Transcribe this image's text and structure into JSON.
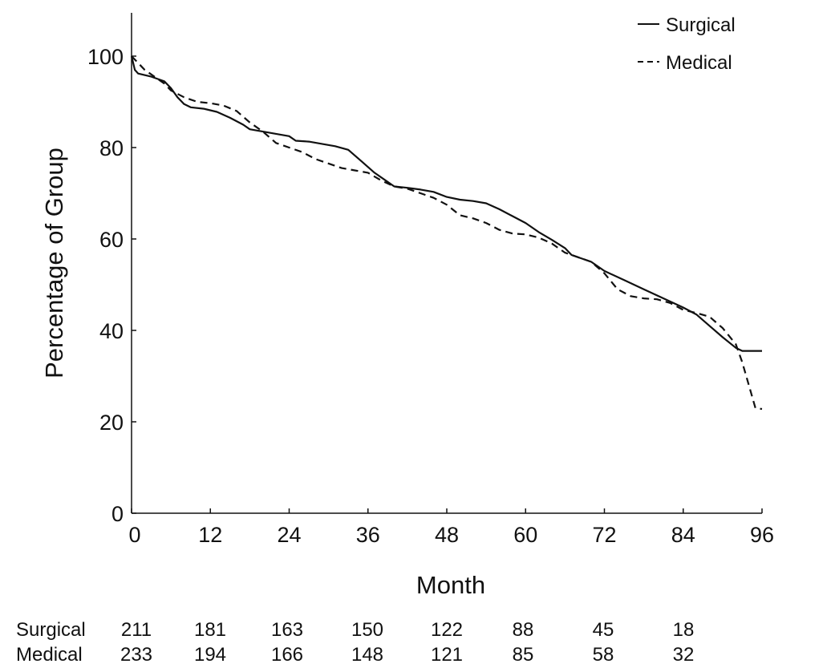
{
  "chart_data": {
    "type": "line",
    "title": "",
    "xlabel": "Month",
    "ylabel": "Percentage of Group",
    "xlim": [
      0,
      96
    ],
    "ylim": [
      0,
      108
    ],
    "x_ticks": [
      0,
      12,
      24,
      36,
      48,
      60,
      72,
      84,
      96
    ],
    "y_ticks": [
      0,
      20,
      40,
      60,
      80,
      100
    ],
    "legend_position": "top-right",
    "series": [
      {
        "name": "Surgical",
        "style": "solid",
        "points": [
          [
            0,
            100
          ],
          [
            0.5,
            97
          ],
          [
            1,
            96.2
          ],
          [
            3,
            95.5
          ],
          [
            5,
            94.5
          ],
          [
            6,
            93
          ],
          [
            7,
            91
          ],
          [
            8,
            89.5
          ],
          [
            9,
            88.8
          ],
          [
            11,
            88.5
          ],
          [
            13,
            87.8
          ],
          [
            15,
            86.5
          ],
          [
            17,
            85
          ],
          [
            18,
            84
          ],
          [
            20,
            83.5
          ],
          [
            22,
            83
          ],
          [
            24,
            82.5
          ],
          [
            25,
            81.5
          ],
          [
            27,
            81.3
          ],
          [
            29,
            80.8
          ],
          [
            31,
            80.3
          ],
          [
            33,
            79.5
          ],
          [
            35,
            77
          ],
          [
            37,
            74.5
          ],
          [
            39,
            72.5
          ],
          [
            40,
            71.5
          ],
          [
            42,
            71.2
          ],
          [
            44,
            70.8
          ],
          [
            46,
            70.3
          ],
          [
            48,
            69.2
          ],
          [
            50,
            68.6
          ],
          [
            52,
            68.3
          ],
          [
            54,
            67.8
          ],
          [
            56,
            66.5
          ],
          [
            58,
            65
          ],
          [
            60,
            63.5
          ],
          [
            62,
            61.5
          ],
          [
            64,
            59.8
          ],
          [
            66,
            58
          ],
          [
            67,
            56.5
          ],
          [
            70,
            55
          ],
          [
            72,
            53
          ],
          [
            75,
            51
          ],
          [
            78,
            49
          ],
          [
            81,
            47
          ],
          [
            84,
            45
          ],
          [
            86,
            43.5
          ],
          [
            88,
            41
          ],
          [
            90,
            38.5
          ],
          [
            92,
            36.2
          ],
          [
            93,
            35.5
          ],
          [
            96,
            35.5
          ]
        ]
      },
      {
        "name": "Medical",
        "style": "dashed",
        "points": [
          [
            0,
            100
          ],
          [
            1,
            98.5
          ],
          [
            2,
            97
          ],
          [
            3,
            96
          ],
          [
            5,
            94
          ],
          [
            6,
            92.5
          ],
          [
            8,
            91
          ],
          [
            10,
            90
          ],
          [
            12,
            89.7
          ],
          [
            14,
            89.2
          ],
          [
            16,
            88
          ],
          [
            18,
            85.5
          ],
          [
            20,
            83.5
          ],
          [
            22,
            81
          ],
          [
            24,
            80
          ],
          [
            26,
            79
          ],
          [
            28,
            77.5
          ],
          [
            30,
            76.5
          ],
          [
            32,
            75.5
          ],
          [
            34,
            75
          ],
          [
            36,
            74.5
          ],
          [
            38,
            72.8
          ],
          [
            40,
            71.5
          ],
          [
            42,
            71
          ],
          [
            44,
            70
          ],
          [
            46,
            69
          ],
          [
            48,
            67.5
          ],
          [
            50,
            65.2
          ],
          [
            52,
            64.5
          ],
          [
            54,
            63.5
          ],
          [
            56,
            62
          ],
          [
            58,
            61.2
          ],
          [
            60,
            61
          ],
          [
            62,
            60.3
          ],
          [
            64,
            59
          ],
          [
            66,
            57
          ],
          [
            68,
            56
          ],
          [
            70,
            55
          ],
          [
            72,
            52.5
          ],
          [
            74,
            49
          ],
          [
            76,
            47.5
          ],
          [
            78,
            47
          ],
          [
            80,
            46.8
          ],
          [
            82,
            46
          ],
          [
            84,
            44.5
          ],
          [
            86,
            43.8
          ],
          [
            88,
            43
          ],
          [
            90,
            40.5
          ],
          [
            92,
            37
          ],
          [
            93,
            33
          ],
          [
            94,
            28
          ],
          [
            95,
            23
          ],
          [
            96,
            22.8
          ]
        ]
      }
    ],
    "legend": [
      {
        "label": "Surgical",
        "style": "solid"
      },
      {
        "label": "Medical",
        "style": "dashed"
      }
    ],
    "at_risk": {
      "months": [
        0,
        12,
        24,
        36,
        48,
        60,
        72,
        84
      ],
      "rows": [
        {
          "label": "Surgical",
          "values": [
            211,
            181,
            163,
            150,
            122,
            88,
            45,
            18
          ]
        },
        {
          "label": "Medical",
          "values": [
            233,
            194,
            166,
            148,
            121,
            85,
            58,
            32
          ]
        }
      ]
    },
    "colors": {
      "line": "#111111",
      "axis": "#111111",
      "background": "#ffffff"
    }
  }
}
